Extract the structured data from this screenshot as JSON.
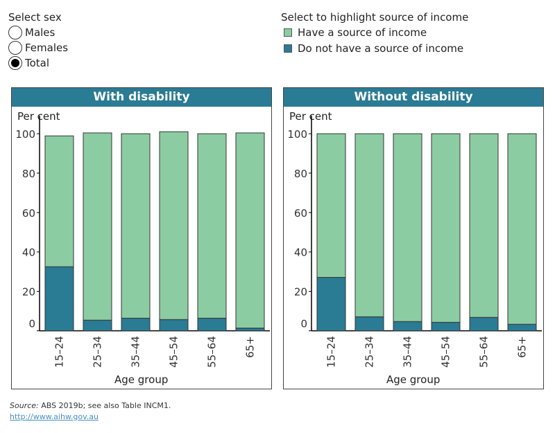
{
  "sex_filter": {
    "label": "Select sex",
    "options": [
      "Males",
      "Females",
      "Total"
    ],
    "selected": "Total"
  },
  "legend": {
    "label": "Select to highlight source of income",
    "items": [
      {
        "label": "Have a source of income",
        "color": "#8ccca2"
      },
      {
        "label": "Do not have a source of income",
        "color": "#2a7b94"
      }
    ]
  },
  "chart_data": [
    {
      "type": "bar",
      "stacked": true,
      "title": "With disability",
      "ylabel": "Per cent",
      "xlabel": "Age group",
      "ylim": [
        0,
        100
      ],
      "yticks": [
        0,
        20,
        40,
        60,
        80,
        100
      ],
      "categories": [
        "15–24",
        "25–34",
        "35–44",
        "45–54",
        "55–64",
        "65+"
      ],
      "series": [
        {
          "name": "Do not have a source of income",
          "color": "#2a7b94",
          "values": [
            32.5,
            5.4,
            6.4,
            5.7,
            6.4,
            1.4
          ]
        },
        {
          "name": "Have a source of income",
          "color": "#8ccca2",
          "values": [
            66.4,
            95.0,
            93.6,
            95.3,
            93.6,
            99.0
          ]
        }
      ]
    },
    {
      "type": "bar",
      "stacked": true,
      "title": "Without disability",
      "ylabel": "Per cent",
      "xlabel": "Age group",
      "ylim": [
        0,
        100
      ],
      "yticks": [
        0,
        20,
        40,
        60,
        80,
        100
      ],
      "categories": [
        "15–24",
        "25–34",
        "35–44",
        "45–54",
        "55–64",
        "65+"
      ],
      "series": [
        {
          "name": "Do not have a source of income",
          "color": "#2a7b94",
          "values": [
            27.1,
            7.1,
            4.7,
            4.3,
            6.8,
            3.3
          ]
        },
        {
          "name": "Have a source of income",
          "color": "#8ccca2",
          "values": [
            72.9,
            92.9,
            95.3,
            95.7,
            93.2,
            96.7
          ]
        }
      ]
    }
  ],
  "footer": {
    "source_label": "Source:",
    "source_text": " ABS 2019b; see also Table INCM1.",
    "url": "http://www.aihw.gov.au"
  }
}
